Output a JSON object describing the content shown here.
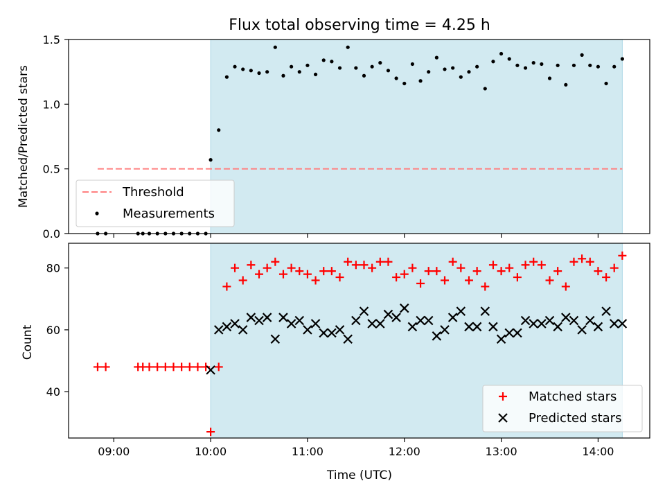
{
  "figure": {
    "title": "Flux total observing time = 4.25 h",
    "xlabel": "Time (UTC)"
  },
  "chart_data": [
    {
      "type": "scatter",
      "panel": "top",
      "ylabel": "Matched/Predicted stars",
      "ylim": [
        0,
        1.5
      ],
      "yticks": [
        0.0,
        0.5,
        1.0,
        1.5
      ],
      "ytick_labels": [
        "0.0",
        "0.5",
        "1.0",
        "1.5"
      ],
      "xlim": [
        "08:32",
        "14:32"
      ],
      "xticks": [
        "09:00",
        "10:00",
        "11:00",
        "12:00",
        "13:00",
        "14:00"
      ],
      "shaded_span": [
        "10:00",
        "14:15"
      ],
      "shade_color": "#add8e6",
      "grid": false,
      "legend": {
        "placement": "lower-left",
        "entries": [
          "Threshold",
          "Measurements"
        ]
      },
      "series": [
        {
          "name": "Threshold",
          "kind": "dashed-line",
          "color": "#ff7f7f",
          "x": [
            "08:50",
            "14:15"
          ],
          "y": [
            0.5,
            0.5
          ]
        },
        {
          "name": "Measurements",
          "kind": "dots",
          "color": "#000000",
          "x": [
            "08:50",
            "08:55",
            "09:15",
            "09:18",
            "09:22",
            "09:27",
            "09:32",
            "09:37",
            "09:42",
            "09:47",
            "09:52",
            "09:57",
            "10:00",
            "10:05",
            "10:10",
            "10:15",
            "10:20",
            "10:25",
            "10:30",
            "10:35",
            "10:40",
            "10:45",
            "10:50",
            "10:55",
            "11:00",
            "11:05",
            "11:10",
            "11:15",
            "11:20",
            "11:25",
            "11:30",
            "11:35",
            "11:40",
            "11:45",
            "11:50",
            "11:55",
            "12:00",
            "12:05",
            "12:10",
            "12:15",
            "12:20",
            "12:25",
            "12:30",
            "12:35",
            "12:40",
            "12:45",
            "12:50",
            "12:55",
            "13:00",
            "13:05",
            "13:10",
            "13:15",
            "13:20",
            "13:25",
            "13:30",
            "13:35",
            "13:40",
            "13:45",
            "13:50",
            "13:55",
            "14:00",
            "14:05",
            "14:10",
            "14:15"
          ],
          "y": [
            0,
            0,
            0,
            0,
            0,
            0,
            0,
            0,
            0,
            0,
            0,
            0,
            0.57,
            0.8,
            1.21,
            1.29,
            1.27,
            1.26,
            1.24,
            1.25,
            1.44,
            1.22,
            1.29,
            1.25,
            1.3,
            1.23,
            1.34,
            1.33,
            1.28,
            1.44,
            1.28,
            1.22,
            1.29,
            1.32,
            1.26,
            1.2,
            1.16,
            1.31,
            1.18,
            1.25,
            1.36,
            1.27,
            1.28,
            1.21,
            1.25,
            1.29,
            1.12,
            1.33,
            1.39,
            1.35,
            1.3,
            1.28,
            1.32,
            1.31,
            1.2,
            1.3,
            1.15,
            1.3,
            1.38,
            1.3,
            1.29,
            1.16,
            1.29,
            1.35
          ]
        }
      ]
    },
    {
      "type": "scatter",
      "panel": "bottom",
      "ylabel": "Count",
      "ylim": [
        25,
        88
      ],
      "yticks": [
        40,
        60,
        80
      ],
      "ytick_labels": [
        "40",
        "60",
        "80"
      ],
      "xlim": [
        "08:32",
        "14:32"
      ],
      "xticks": [
        "09:00",
        "10:00",
        "11:00",
        "12:00",
        "13:00",
        "14:00"
      ],
      "xtick_labels": [
        "09:00",
        "10:00",
        "11:00",
        "12:00",
        "13:00",
        "14:00"
      ],
      "shaded_span": [
        "10:00",
        "14:15"
      ],
      "shade_color": "#add8e6",
      "grid": false,
      "legend": {
        "placement": "lower-right",
        "entries": [
          "Matched stars",
          "Predicted stars"
        ]
      },
      "series": [
        {
          "name": "Matched stars",
          "marker": "plus",
          "color": "#ff0000",
          "x": [
            "08:50",
            "08:55",
            "09:15",
            "09:18",
            "09:22",
            "09:27",
            "09:32",
            "09:37",
            "09:42",
            "09:47",
            "09:52",
            "09:57",
            "10:00",
            "10:05",
            "10:10",
            "10:15",
            "10:20",
            "10:25",
            "10:30",
            "10:35",
            "10:40",
            "10:45",
            "10:50",
            "10:55",
            "11:00",
            "11:05",
            "11:10",
            "11:15",
            "11:20",
            "11:25",
            "11:30",
            "11:35",
            "11:40",
            "11:45",
            "11:50",
            "11:55",
            "12:00",
            "12:05",
            "12:10",
            "12:15",
            "12:20",
            "12:25",
            "12:30",
            "12:35",
            "12:40",
            "12:45",
            "12:50",
            "12:55",
            "13:00",
            "13:05",
            "13:10",
            "13:15",
            "13:20",
            "13:25",
            "13:30",
            "13:35",
            "13:40",
            "13:45",
            "13:50",
            "13:55",
            "14:00",
            "14:05",
            "14:10",
            "14:15"
          ],
          "y": [
            48,
            48,
            48,
            48,
            48,
            48,
            48,
            48,
            48,
            48,
            48,
            48,
            27,
            48,
            74,
            80,
            76,
            81,
            78,
            80,
            82,
            78,
            80,
            79,
            78,
            76,
            79,
            79,
            77,
            82,
            81,
            81,
            80,
            82,
            82,
            77,
            78,
            80,
            75,
            79,
            79,
            76,
            82,
            80,
            76,
            79,
            74,
            81,
            79,
            80,
            77,
            81,
            82,
            81,
            76,
            79,
            74,
            82,
            83,
            82,
            79,
            77,
            80,
            84
          ]
        },
        {
          "name": "Predicted stars",
          "marker": "x",
          "color": "#000000",
          "x": [
            "10:00",
            "10:05",
            "10:10",
            "10:15",
            "10:20",
            "10:25",
            "10:30",
            "10:35",
            "10:40",
            "10:45",
            "10:50",
            "10:55",
            "11:00",
            "11:05",
            "11:10",
            "11:15",
            "11:20",
            "11:25",
            "11:30",
            "11:35",
            "11:40",
            "11:45",
            "11:50",
            "11:55",
            "12:00",
            "12:05",
            "12:10",
            "12:15",
            "12:20",
            "12:25",
            "12:30",
            "12:35",
            "12:40",
            "12:45",
            "12:50",
            "12:55",
            "13:00",
            "13:05",
            "13:10",
            "13:15",
            "13:20",
            "13:25",
            "13:30",
            "13:35",
            "13:40",
            "13:45",
            "13:50",
            "13:55",
            "14:00",
            "14:05",
            "14:10",
            "14:15"
          ],
          "y": [
            47,
            60,
            61,
            62,
            60,
            64,
            63,
            64,
            57,
            64,
            62,
            63,
            60,
            62,
            59,
            59,
            60,
            57,
            63,
            66,
            62,
            62,
            65,
            64,
            67,
            61,
            63,
            63,
            58,
            60,
            64,
            66,
            61,
            61,
            66,
            61,
            57,
            59,
            59,
            63,
            62,
            62,
            63,
            61,
            64,
            63,
            60,
            63,
            61,
            66,
            62,
            62
          ]
        }
      ]
    }
  ]
}
